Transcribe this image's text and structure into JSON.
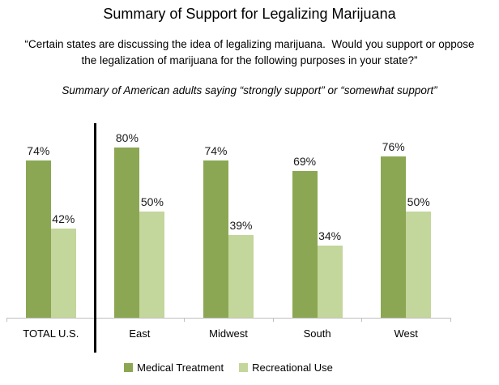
{
  "title": "Summary of Support for Legalizing Marijuana",
  "question": {
    "line1": "“Certain states are discussing the idea of legalizing marijuana.  Would you support or oppose",
    "line2": "the legalization of marijuana for the following purposes in your state?”"
  },
  "subtitle": "Summary of American adults saying “strongly support” or “somewhat support”",
  "colors": {
    "medical_green": "#8BA753",
    "recreational_green": "#C3D69B",
    "axis_gray": "#BFBFBF",
    "separator_black": "#000000",
    "label_text": "#1a1a1a"
  },
  "chart_data": {
    "type": "bar",
    "categories": [
      "TOTAL U.S.",
      "East",
      "Midwest",
      "South",
      "West"
    ],
    "series": [
      {
        "name": "Medical Treatment",
        "values": [
          74,
          80,
          74,
          69,
          76
        ],
        "color": "#8BA753"
      },
      {
        "name": "Recreational Use",
        "values": [
          42,
          50,
          39,
          34,
          50
        ],
        "color": "#C3D69B"
      }
    ],
    "value_suffix": "%",
    "ylim": [
      0,
      100
    ],
    "grid": false,
    "y_axis_shown": false,
    "data_labels_shown": true,
    "legend_position": "bottom",
    "separator_after_category_index": 0
  }
}
